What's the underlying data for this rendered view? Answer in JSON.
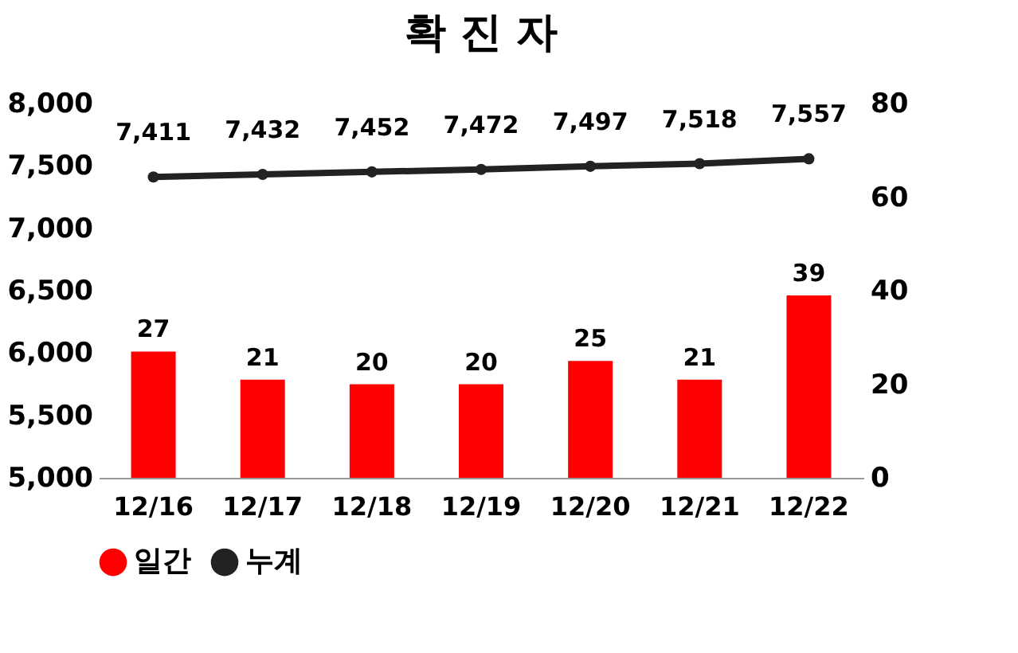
{
  "chart_data": {
    "type": "bar",
    "title": "확 진 자",
    "categories": [
      "12/16",
      "12/17",
      "12/18",
      "12/19",
      "12/20",
      "12/21",
      "12/22"
    ],
    "series": [
      {
        "name": "일간",
        "axis": "y2",
        "color": "#ff0000",
        "values": [
          27,
          21,
          20,
          20,
          25,
          21,
          39
        ]
      },
      {
        "name": "누계",
        "type": "line",
        "color": "#222222",
        "values": [
          7411,
          7432,
          7452,
          7472,
          7497,
          7518,
          7557
        ],
        "value_labels": [
          "7,411",
          "7,432",
          "7,452",
          "7,472",
          "7,497",
          "7,518",
          "7,557"
        ]
      }
    ],
    "ylim": [
      5000,
      8000
    ],
    "yticks": [
      {
        "value": 5000,
        "label": "5,000"
      },
      {
        "value": 5500,
        "label": "5,500"
      },
      {
        "value": 6000,
        "label": "6,000"
      },
      {
        "value": 6500,
        "label": "6,500"
      },
      {
        "value": 7000,
        "label": "7,000"
      },
      {
        "value": 7500,
        "label": "7,500"
      },
      {
        "value": 8000,
        "label": "8,000"
      }
    ],
    "y2lim": [
      0,
      80
    ],
    "y2ticks": [
      0,
      20,
      40,
      60,
      80
    ],
    "data_labels": true,
    "legend": "bottom",
    "marker": "circle",
    "line_style": "solid"
  }
}
